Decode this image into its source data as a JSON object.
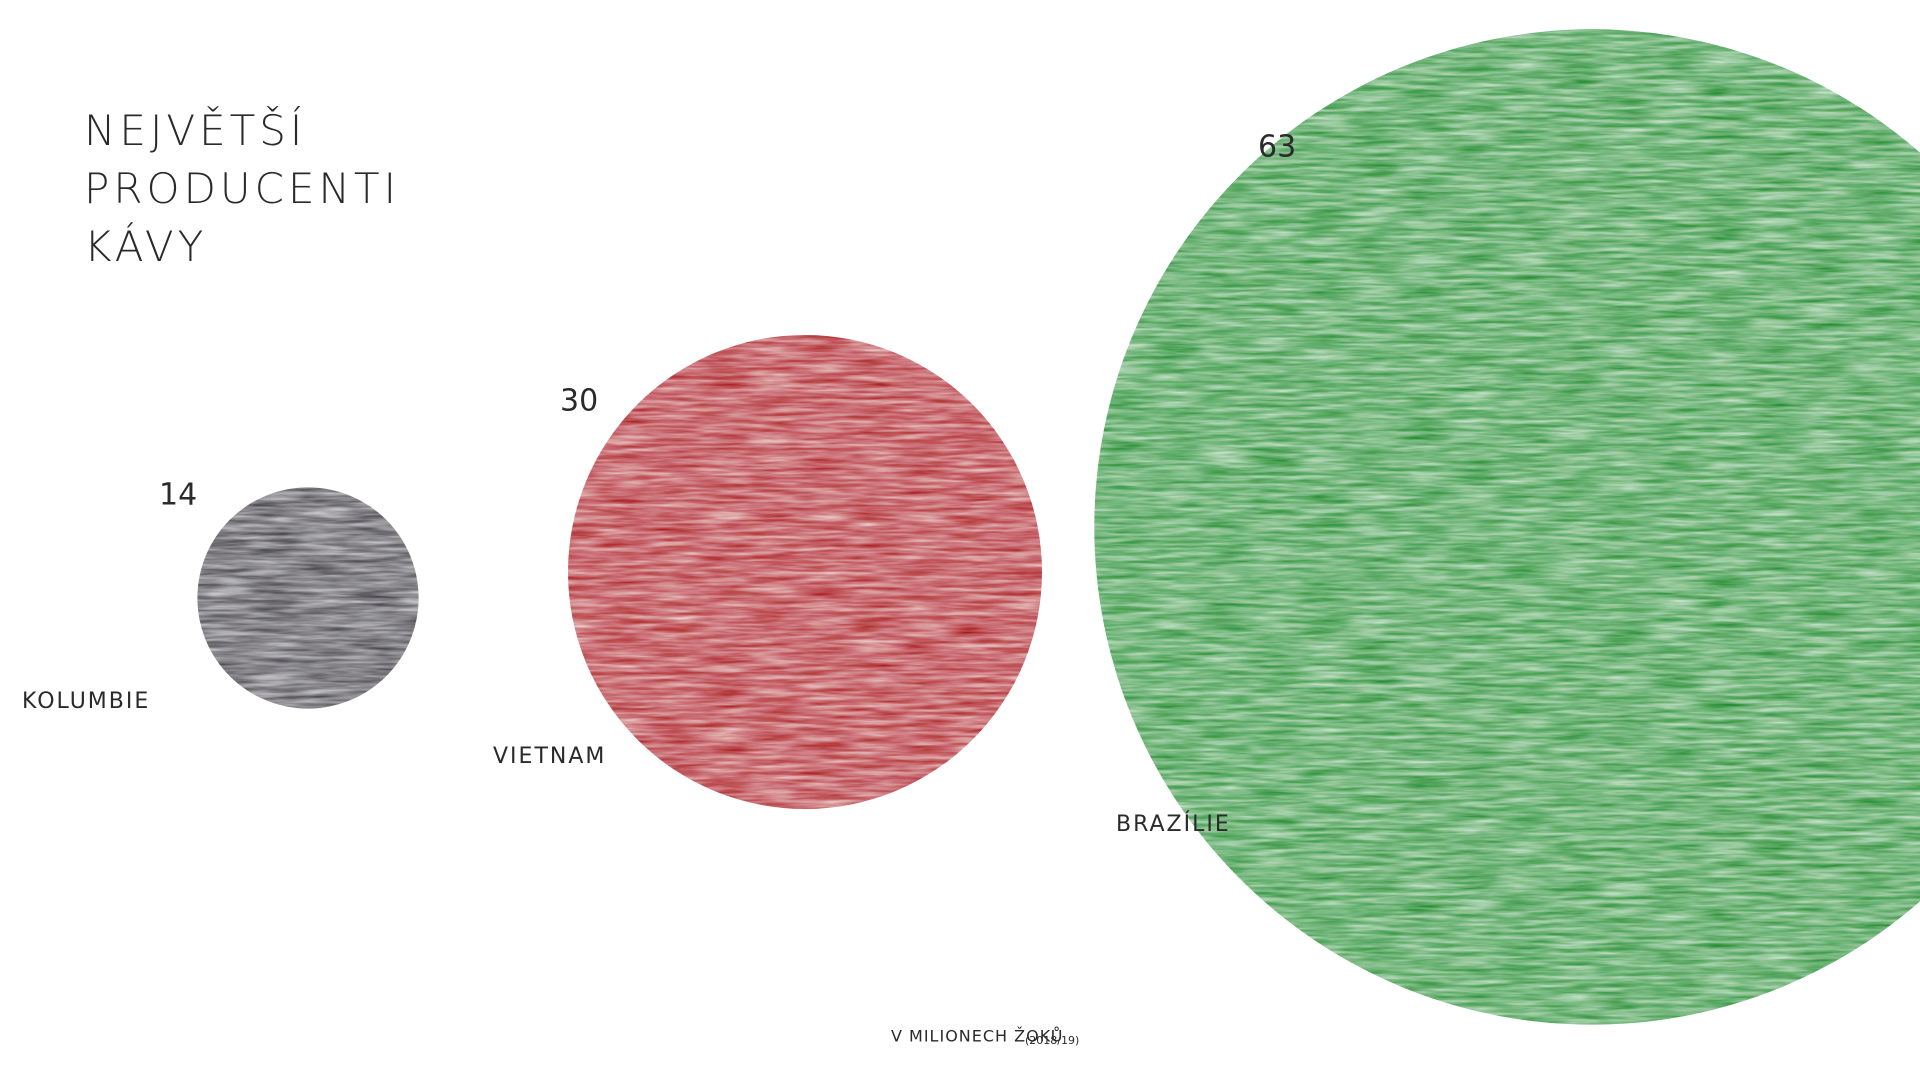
{
  "chart_data": {
    "type": "bubble",
    "title": "NEJVĚTŠÍ PRODUCENTI KÁVY",
    "subtitle": "V MILIONECH ŽOKŮ",
    "note": "(2018/19)",
    "categories": [
      "KOLUMBIE",
      "VIETNAM",
      "BRAZÍLIE"
    ],
    "values": [
      14,
      30,
      63
    ],
    "colors": [
      "#3a3840",
      "#a8161c",
      "#1f8a2c"
    ]
  }
}
